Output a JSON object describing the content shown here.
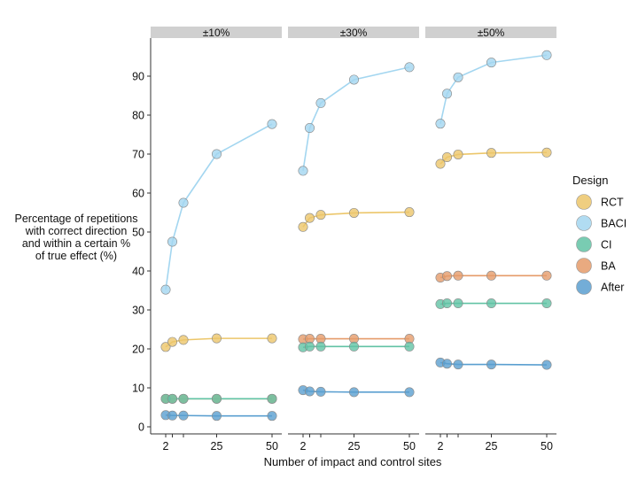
{
  "chart_data": {
    "type": "line",
    "xlabel": "Number of impact and control sites",
    "ylabel": [
      "Percentage of repetitions",
      "with correct direction",
      "and within a certain %",
      "of true effect (%)"
    ],
    "x": [
      2,
      5,
      10,
      25,
      50
    ],
    "x_ticks": [
      2,
      25,
      50
    ],
    "y_ticks": [
      0,
      10,
      20,
      30,
      40,
      50,
      60,
      70,
      80,
      90
    ],
    "ylim": [
      -1,
      100
    ],
    "grid": false,
    "legend": {
      "title": "Design",
      "position": "right",
      "entries": [
        "RCT",
        "BACI",
        "CI",
        "BA",
        "After"
      ]
    },
    "colors": {
      "RCT": "#ecc66a",
      "BACI": "#a3d6f0",
      "CI": "#62c3a5",
      "BA": "#e59b6a",
      "After": "#5a9fd0"
    },
    "facets": [
      {
        "label": "±10%",
        "series": [
          {
            "name": "BACI",
            "values": [
              35.2,
              47.5,
              57.5,
              70.0,
              77.7
            ]
          },
          {
            "name": "RCT",
            "values": [
              20.5,
              21.8,
              22.3,
              22.7,
              22.7
            ]
          },
          {
            "name": "BA",
            "values": [
              7.2,
              7.2,
              7.2,
              7.2,
              7.2
            ]
          },
          {
            "name": "CI",
            "values": [
              7.2,
              7.2,
              7.2,
              7.2,
              7.2
            ]
          },
          {
            "name": "After",
            "values": [
              3.0,
              2.9,
              2.9,
              2.8,
              2.8
            ]
          }
        ]
      },
      {
        "label": "±30%",
        "series": [
          {
            "name": "BACI",
            "values": [
              65.7,
              76.7,
              83.1,
              89.1,
              92.3
            ]
          },
          {
            "name": "RCT",
            "values": [
              51.3,
              53.6,
              54.4,
              54.9,
              55.1
            ]
          },
          {
            "name": "BA",
            "values": [
              22.5,
              22.6,
              22.6,
              22.6,
              22.6
            ]
          },
          {
            "name": "CI",
            "values": [
              20.4,
              20.6,
              20.6,
              20.6,
              20.6
            ]
          },
          {
            "name": "After",
            "values": [
              9.4,
              9.1,
              9.0,
              8.9,
              8.9
            ]
          }
        ]
      },
      {
        "label": "±50%",
        "series": [
          {
            "name": "BACI",
            "values": [
              77.8,
              85.5,
              89.7,
              93.5,
              95.4
            ]
          },
          {
            "name": "RCT",
            "values": [
              67.5,
              69.2,
              69.9,
              70.3,
              70.4
            ]
          },
          {
            "name": "BA",
            "values": [
              38.3,
              38.7,
              38.8,
              38.8,
              38.8
            ]
          },
          {
            "name": "CI",
            "values": [
              31.5,
              31.7,
              31.7,
              31.7,
              31.7
            ]
          },
          {
            "name": "After",
            "values": [
              16.5,
              16.2,
              16.0,
              16.0,
              15.9
            ]
          }
        ]
      }
    ]
  }
}
